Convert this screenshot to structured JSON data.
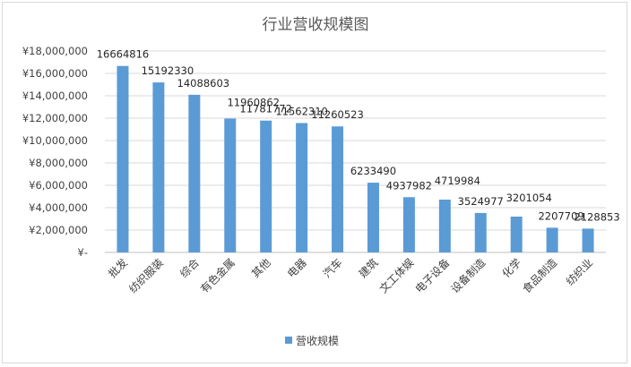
{
  "chart_data": {
    "type": "bar",
    "title": "行业营收规模图",
    "categories": [
      "批发",
      "纺织服装",
      "综合",
      "有色金属",
      "其他",
      "电器",
      "汽车",
      "建筑",
      "文工体娱",
      "电子设备",
      "设备制造",
      "化学",
      "食品制造",
      "纺织业"
    ],
    "series": [
      {
        "name": "营收规模",
        "values": [
          16664816,
          15192330,
          14088603,
          11960862,
          11781772,
          11562310,
          11260523,
          6233490,
          4937982,
          4719984,
          3524977,
          3201054,
          2207709,
          2128853
        ],
        "color": "#5b9bd5"
      }
    ],
    "data_labels": [
      "16664816",
      "15192330",
      "14088603",
      "11960862",
      "11781772",
      "11562310",
      "11260523",
      "6233490",
      "4937982",
      "4719984",
      "3524977",
      "3201054",
      "2207709",
      "2128853"
    ],
    "y_ticks": [
      0,
      2000000,
      4000000,
      6000000,
      8000000,
      10000000,
      12000000,
      14000000,
      16000000,
      18000000
    ],
    "y_tick_labels": [
      "¥-",
      "¥2,000,000",
      "¥4,000,000",
      "¥6,000,000",
      "¥8,000,000",
      "¥10,000,000",
      "¥12,000,000",
      "¥14,000,000",
      "¥16,000,000",
      "¥18,000,000"
    ],
    "ylim": [
      0,
      18000000
    ],
    "grid": true,
    "legend": {
      "position": "bottom",
      "label": "营收规模"
    },
    "xlabel": "",
    "ylabel": ""
  }
}
